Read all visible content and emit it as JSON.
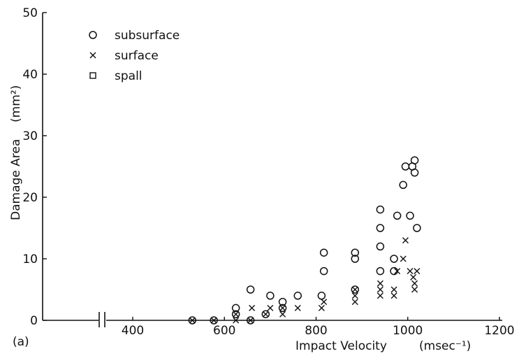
{
  "chart_data": {
    "type": "scatter",
    "panel_label": "(a)",
    "xlabel": "Impact Velocity",
    "xunit": "(msec⁻¹)",
    "ylabel": "Damage Area",
    "yunit": "(mm²)",
    "xlim": [
      300,
      1200
    ],
    "ylim": [
      0,
      50
    ],
    "x_axis_break": true,
    "x_ticks": [
      400,
      600,
      800,
      1000,
      1200
    ],
    "y_ticks": [
      0,
      10,
      20,
      30,
      40,
      50
    ],
    "grid": false,
    "legend_position": "top-left",
    "series": [
      {
        "name": "subsurface",
        "marker": "circle",
        "points": [
          [
            530,
            0
          ],
          [
            577,
            0
          ],
          [
            657,
            0
          ],
          [
            625,
            1
          ],
          [
            625,
            2
          ],
          [
            657,
            5
          ],
          [
            690,
            1
          ],
          [
            700,
            4
          ],
          [
            727,
            2
          ],
          [
            727,
            3
          ],
          [
            760,
            4
          ],
          [
            812,
            4
          ],
          [
            817,
            8
          ],
          [
            817,
            11
          ],
          [
            885,
            5
          ],
          [
            885,
            10
          ],
          [
            885,
            11
          ],
          [
            940,
            8
          ],
          [
            940,
            12
          ],
          [
            940,
            15
          ],
          [
            940,
            18
          ],
          [
            970,
            8
          ],
          [
            970,
            10
          ],
          [
            977,
            17
          ],
          [
            990,
            22
          ],
          [
            995,
            25
          ],
          [
            1005,
            17
          ],
          [
            1010,
            25
          ],
          [
            1015,
            24
          ],
          [
            1015,
            26
          ],
          [
            1020,
            15
          ]
        ]
      },
      {
        "name": "surface",
        "marker": "x",
        "points": [
          [
            530,
            0
          ],
          [
            577,
            0
          ],
          [
            625,
            0
          ],
          [
            625,
            1
          ],
          [
            657,
            0
          ],
          [
            660,
            2
          ],
          [
            690,
            1
          ],
          [
            700,
            2
          ],
          [
            727,
            1
          ],
          [
            727,
            2
          ],
          [
            760,
            2
          ],
          [
            812,
            2
          ],
          [
            817,
            3
          ],
          [
            885,
            3
          ],
          [
            885,
            4
          ],
          [
            885,
            5
          ],
          [
            940,
            4
          ],
          [
            940,
            5
          ],
          [
            940,
            6
          ],
          [
            970,
            4
          ],
          [
            970,
            5
          ],
          [
            977,
            8
          ],
          [
            990,
            10
          ],
          [
            995,
            13
          ],
          [
            1005,
            8
          ],
          [
            1012,
            7
          ],
          [
            1015,
            5
          ],
          [
            1015,
            6
          ],
          [
            1020,
            8
          ]
        ]
      },
      {
        "name": "spall",
        "marker": "square",
        "points": []
      }
    ]
  }
}
